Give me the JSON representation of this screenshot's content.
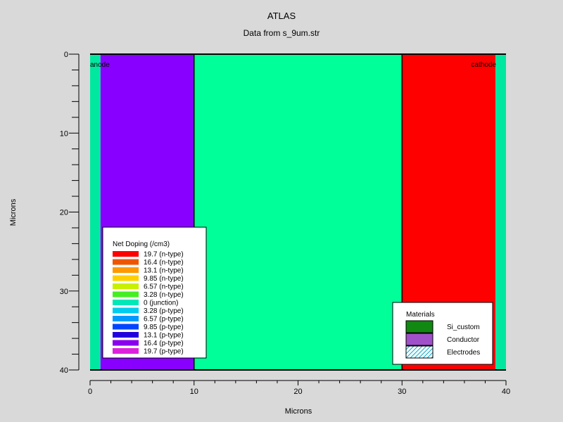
{
  "chart_data": {
    "type": "heatmap",
    "title": "ATLAS",
    "subtitle": "Data from s_9um.str",
    "xlabel": "Microns",
    "ylabel": "Microns",
    "xlim": [
      0,
      40
    ],
    "ylim": [
      0,
      40
    ],
    "y_inverted": true,
    "x_ticks": [
      "0",
      "10",
      "20",
      "30",
      "40"
    ],
    "y_ticks": [
      "0",
      "10",
      "20",
      "30",
      "40"
    ],
    "regions": [
      {
        "x": [
          0,
          1
        ],
        "y": [
          0,
          40
        ],
        "color": "#00e8a0",
        "role": "electrode"
      },
      {
        "x": [
          1,
          10
        ],
        "y": [
          0,
          40
        ],
        "color": "#8800ff",
        "role": "p-type"
      },
      {
        "x": [
          10,
          30
        ],
        "y": [
          0,
          40
        ],
        "color": "#00ff99",
        "role": "junction"
      },
      {
        "x": [
          30,
          39
        ],
        "y": [
          0,
          40
        ],
        "color": "#ff0000",
        "role": "n-type"
      },
      {
        "x": [
          39,
          40
        ],
        "y": [
          0,
          40
        ],
        "color": "#00e8a0",
        "role": "electrode"
      }
    ],
    "boundaries_x": [
      10,
      30
    ],
    "electrodes": [
      {
        "label": "anode",
        "x": 0
      },
      {
        "label": "cathode",
        "x": 40
      }
    ],
    "doping_legend": {
      "title": "Net Doping (/cm3)",
      "entries": [
        {
          "label": "19.7 (n-type)",
          "color": "#ff0000"
        },
        {
          "label": "16.4 (n-type)",
          "color": "#ee5500"
        },
        {
          "label": "13.1 (n-type)",
          "color": "#ff9900"
        },
        {
          "label": "9.85 (n-type)",
          "color": "#ffd000"
        },
        {
          "label": "6.57 (n-type)",
          "color": "#c8f000"
        },
        {
          "label": "3.28 (n-type)",
          "color": "#44ee22"
        },
        {
          "label": "0 (junction)",
          "color": "#00e8b8"
        },
        {
          "label": "3.28 (p-type)",
          "color": "#00ccee"
        },
        {
          "label": "6.57 (p-type)",
          "color": "#0099ff"
        },
        {
          "label": "9.85 (p-type)",
          "color": "#0044ff"
        },
        {
          "label": "13.1 (p-type)",
          "color": "#2200dd"
        },
        {
          "label": "16.4 (p-type)",
          "color": "#8800ee"
        },
        {
          "label": "19.7 (p-type)",
          "color": "#dd22dd"
        }
      ]
    },
    "materials_legend": {
      "title": "Materials",
      "entries": [
        {
          "label": "Si_custom",
          "color": "#118811",
          "pattern": "solid"
        },
        {
          "label": "Conductor",
          "color": "#a050c8",
          "pattern": "solid"
        },
        {
          "label": "Electrodes",
          "color": "#00aacc",
          "pattern": "hatch"
        }
      ]
    }
  }
}
